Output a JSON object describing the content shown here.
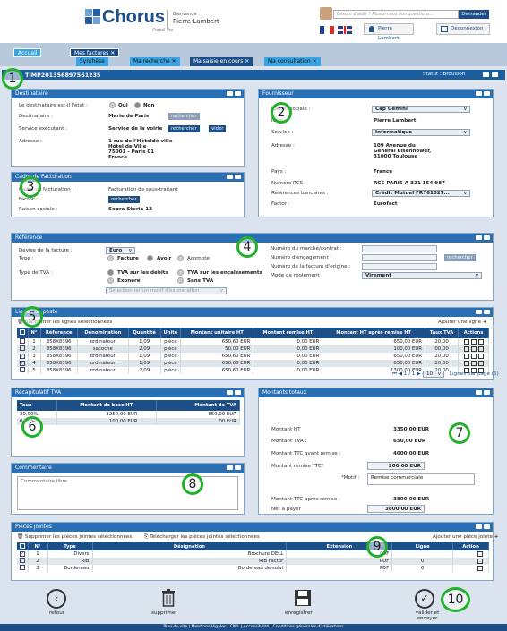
{
  "header": {
    "logo": "Chorus",
    "logo_sub": "Portail Pro",
    "welcome": "Bienvenue",
    "user": "Pierre Lambert",
    "help_placeholder": "Besoin d'aide ? Posez-nous vos questions...",
    "help_button": "Demander",
    "user_button": "Pierre Lambert",
    "logout_button": "Déconnexion"
  },
  "nav": {
    "home": "Accueil",
    "tabs": [
      "Mes factures"
    ],
    "subtabs": [
      "Synthèse",
      "Ma recherche",
      "Ma saisie en cours",
      "Ma consultation"
    ]
  },
  "invoice": {
    "id": "TIMP201356897561235",
    "status": "Statut : Brouillon"
  },
  "destinataire": {
    "title": "Destinataire",
    "public_q": "Le destinataire est-il l'état :",
    "oui": "Oui",
    "non": "Non",
    "dest_lbl": "Destinataire :",
    "dest_val": "Marie de Paris",
    "rechercher": "rechercher",
    "service_lbl": "Service exécutant :",
    "service_val": "Service de la voirie",
    "vider": "vider",
    "adresse_lbl": "Adresse :",
    "adresse_lines": [
      "1 rue de l'Hôteldè ville",
      "Hôtel de Ville",
      "75001 - Paris 01",
      "France"
    ]
  },
  "cadre": {
    "title": "Cadre de Facturation",
    "cadre_lbl": "Cadre de facturation :",
    "cadre_val": "Facturation de sous-traitant",
    "factor_lbl": "Factor :",
    "rechercher": "rechercher",
    "raison_lbl": "Raison sociale :",
    "raison_val": "Sopra Steria 12"
  },
  "fournisseur": {
    "title": "Fournisseur",
    "raison_lbl": "Raison sociale :",
    "raison_val": "Cap Gemini",
    "nom_lbl": "Nom :",
    "nom_val": "Pierre Lambert",
    "service_lbl": "Service :",
    "service_val": "Informatique",
    "adresse_lbl": "Adresse :",
    "adresse_lines": [
      "109 Avenue du",
      "Général Eisenhower,",
      "31000 Toulouse"
    ],
    "pays_lbl": "Pays :",
    "pays_val": "France",
    "rcs_lbl": "Numéro RCS :",
    "rcs_val": "RCS PARIS A 321 154 987",
    "banque_lbl": "Références bancaires :",
    "banque_val": "Crédit Mutuel FR761027...",
    "factor_lbl": "Factor :",
    "factor_val": "Eurofact"
  },
  "reference": {
    "title": "Référence",
    "devise_lbl": "Devise de la facture :",
    "devise_val": "Euro",
    "type_lbl": "Type :",
    "types": [
      "Facture",
      "Avoir",
      "Acompte"
    ],
    "tva_lbl": "Type de TVA :",
    "tva_opts": [
      "TVA sur les débits",
      "TVA sur les encaissements",
      "Exonéré",
      "Sans TVA"
    ],
    "motif_placeholder": "Sélectionner un motif d'exonération",
    "marche_lbl": "Numéro du marché/contrat :",
    "engagement_lbl": "Numéro d'engagement :",
    "origine_lbl": "Numéro de la facture d'origine :",
    "reglement_lbl": "Mode de règlement :",
    "reglement_val": "Virement",
    "rechercher": "rechercher"
  },
  "lignes": {
    "title": "Lignes de poste",
    "delete_selected": "Supprimer les lignes sélectionnées",
    "add": "Ajouter une ligne",
    "columns": [
      "N°",
      "Référence",
      "Dénomination",
      "Quantité",
      "Unité",
      "Montant unitaire HT",
      "Montant remise HT",
      "Montant HT après remise HT",
      "Taux TVA",
      "Actions"
    ],
    "rows": [
      [
        "1",
        "358X8396",
        "ordinateur",
        "1,09",
        "pièce",
        "650,60 EUR",
        "0,00 EUR",
        "650,00 EUR",
        "20,00"
      ],
      [
        "2",
        "358X8396",
        "sacoche",
        "2,09",
        "pièce",
        "50,00 EUR",
        "0,00 EUR",
        "100,00 EUR",
        "00,00"
      ],
      [
        "3",
        "358X8396",
        "ordinateur",
        "1,09",
        "pièce",
        "650,60 EUR",
        "0,00 EUR",
        "650,00 EUR",
        "20,00"
      ],
      [
        "4",
        "358X8396",
        "ordinateur",
        "1,09",
        "pièce",
        "650,60 EUR",
        "0,00 EUR",
        "650,00 EUR",
        "20,00"
      ],
      [
        "5",
        "358X8396",
        "ordinateur",
        "2,09",
        "pièce",
        "650,60 EUR",
        "0,00 EUR",
        "1300,00 EUR",
        "20,00"
      ]
    ],
    "checked": [
      false,
      false,
      true,
      true,
      false
    ],
    "pagination": "1 / 1",
    "per_page_val": "10",
    "per_page_lbl": "Lignes par page (5)"
  },
  "recap": {
    "title": "Récapitulatif TVA",
    "columns": [
      "Taux",
      "Montant de base HT",
      "Montant de TVA"
    ],
    "rows": [
      [
        "20,00%",
        "3250,00 EUR",
        "650,00 EUR"
      ],
      [
        "0,00%",
        "100,00 EUR",
        "00 EUR"
      ]
    ]
  },
  "commentaire": {
    "title": "Commentaire",
    "placeholder": "Commentaire libre..."
  },
  "totaux": {
    "title": "Montants totaux",
    "ht_lbl": "Montant HT",
    "ht_val": "3350,00 EUR",
    "tva_lbl": "Montant TVA :",
    "tva_val": "650,00 EUR",
    "ttc_lbl": "Montant TTC avant remise :",
    "ttc_val": "4000,00 EUR",
    "remise_lbl": "Montant remise TTC*",
    "remise_val": "200,00 EUR",
    "motif_lbl": "*Motif :",
    "motif_val": "Remise commerciale",
    "apres_lbl": "Montant TTC après remise :",
    "apres_val": "3800,00 EUR",
    "net_lbl": "Net à payer",
    "net_val": "3800,00 EUR"
  },
  "pieces": {
    "title": "Pièces jointes",
    "delete_selected": "Supprimer les pièces jointes sélectionnées",
    "download_selected": "Télécharger les pièces jointes sélectionnées",
    "add": "Ajouter une pièce jointe",
    "columns": [
      "N°",
      "Type",
      "Désignation",
      "Extension",
      "Ligne",
      "Action"
    ],
    "rows": [
      [
        "1",
        "Divers",
        "Brochure DELL",
        "PDF",
        ""
      ],
      [
        "2",
        "RIB",
        "RIB Factor",
        "PDF",
        "0"
      ],
      [
        "3",
        "Bordereau",
        "Bordereau de suivi",
        "PDF",
        "0"
      ]
    ],
    "checked": [
      true,
      false,
      false
    ]
  },
  "actions": {
    "retour": "retour",
    "supprimer": "supprimer",
    "enregistrer": "enregistrer",
    "valider": "valider et envoyer"
  },
  "footer": "Plan du site  |  Mentions légales  |  CNIL  |  Accessibilité  |  Conditions générales d'utilisations",
  "badges": [
    "1",
    "2",
    "3",
    "4",
    "5",
    "6",
    "7",
    "8",
    "9",
    "10"
  ],
  "colors": {
    "primary": "#1c4f87",
    "panel_header": "#2a6fb2",
    "badge": "#20b02a",
    "accent": "#3aa3e3"
  }
}
